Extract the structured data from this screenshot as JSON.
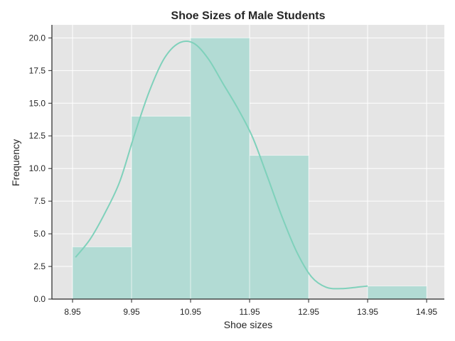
{
  "chart_data": {
    "type": "bar",
    "title": "Shoe Sizes of Male Students",
    "xlabel": "Shoe sizes",
    "ylabel": "Frequency",
    "bins": [
      {
        "start": 8.95,
        "end": 9.95,
        "value": 4
      },
      {
        "start": 9.95,
        "end": 10.95,
        "value": 14
      },
      {
        "start": 10.95,
        "end": 11.95,
        "value": 20
      },
      {
        "start": 11.95,
        "end": 12.95,
        "value": 11
      },
      {
        "start": 12.95,
        "end": 13.95,
        "value": 0
      },
      {
        "start": 13.95,
        "end": 14.95,
        "value": 1
      }
    ],
    "kde": {
      "x": [
        9.0,
        9.25,
        9.5,
        9.75,
        10.0,
        10.25,
        10.5,
        10.75,
        11.0,
        11.25,
        11.5,
        11.75,
        12.0,
        12.25,
        12.5,
        12.75,
        13.0,
        13.25,
        13.5,
        13.75,
        13.95
      ],
      "y": [
        3.2,
        4.6,
        6.6,
        9.0,
        12.6,
        15.9,
        18.4,
        19.6,
        19.6,
        18.4,
        16.5,
        14.6,
        12.4,
        9.4,
        6.3,
        3.6,
        1.7,
        0.9,
        0.8,
        0.9,
        1.0
      ]
    },
    "xticks": [
      "8.95",
      "9.95",
      "10.95",
      "11.95",
      "12.95",
      "13.95",
      "14.95"
    ],
    "yticks": [
      "0.0",
      "2.5",
      "5.0",
      "7.5",
      "10.0",
      "12.5",
      "15.0",
      "17.5",
      "20.0"
    ],
    "xlim": [
      8.6,
      15.25
    ],
    "ylim": [
      0,
      21.0
    ],
    "grid": true,
    "colors": {
      "background": "#e5e5e5",
      "bar_fill": "#b2dbd4",
      "kde_line": "#7fd1bb",
      "grid": "#ffffff",
      "axis": "#262626"
    }
  }
}
